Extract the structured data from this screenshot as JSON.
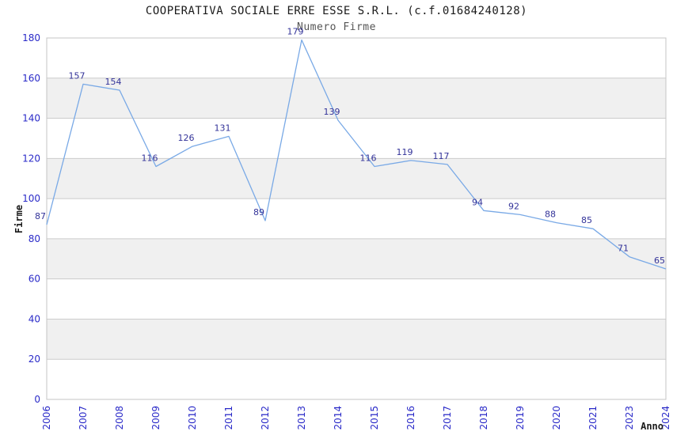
{
  "chart_data": {
    "type": "line",
    "title": "COOPERATIVA SOCIALE ERRE ESSE S.R.L. (c.f.01684240128)",
    "subtitle": "Numero Firme",
    "xlabel": "Anno",
    "ylabel": "Firme",
    "categories": [
      "2006",
      "2007",
      "2008",
      "2009",
      "2010",
      "2011",
      "2012",
      "2013",
      "2014",
      "2015",
      "2016",
      "2017",
      "2018",
      "2019",
      "2020",
      "2021",
      "2023",
      "2024"
    ],
    "values": [
      87,
      157,
      154,
      116,
      126,
      131,
      89,
      179,
      139,
      116,
      119,
      117,
      94,
      92,
      88,
      85,
      71,
      65
    ],
    "ylim": [
      0,
      180
    ],
    "ytick_step": 20,
    "yticks": [
      0,
      20,
      40,
      60,
      80,
      100,
      120,
      140,
      160,
      180
    ],
    "grid": true,
    "legend_position": "none",
    "band_pattern": "alternating horizontal bands, gray on 20-40, 60-80, 100-120, 140-160",
    "colors": {
      "line": "#79a9e6",
      "data_label": "#333399",
      "tick_label": "#2a2ac8",
      "band": "#f0f0f0",
      "grid": "#cccccc",
      "plot_border": "#c4c4c4",
      "title": "#1a1a1a",
      "subtitle": "#555555",
      "axis_title": "#1a1a1a",
      "background": "#ffffff"
    }
  }
}
